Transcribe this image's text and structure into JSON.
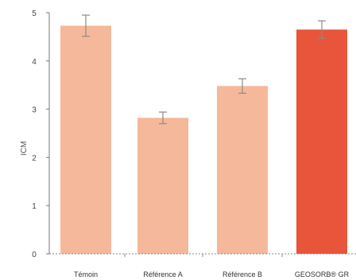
{
  "chart_data": {
    "type": "bar",
    "ylabel": "ICM",
    "xlabel": "",
    "ylim": [
      0,
      5
    ],
    "yticks": [
      0,
      1,
      2,
      3,
      4,
      5
    ],
    "categories": [
      "Témoin",
      "Référence A",
      "Référence B",
      "GEOSORB® GR"
    ],
    "values": [
      4.73,
      2.82,
      3.48,
      4.65
    ],
    "error": [
      0.22,
      0.12,
      0.15,
      0.18
    ],
    "colors": [
      "#f6b89a",
      "#f6b89a",
      "#f6b89a",
      "#e8553a"
    ],
    "grid": false,
    "legend": "none"
  }
}
